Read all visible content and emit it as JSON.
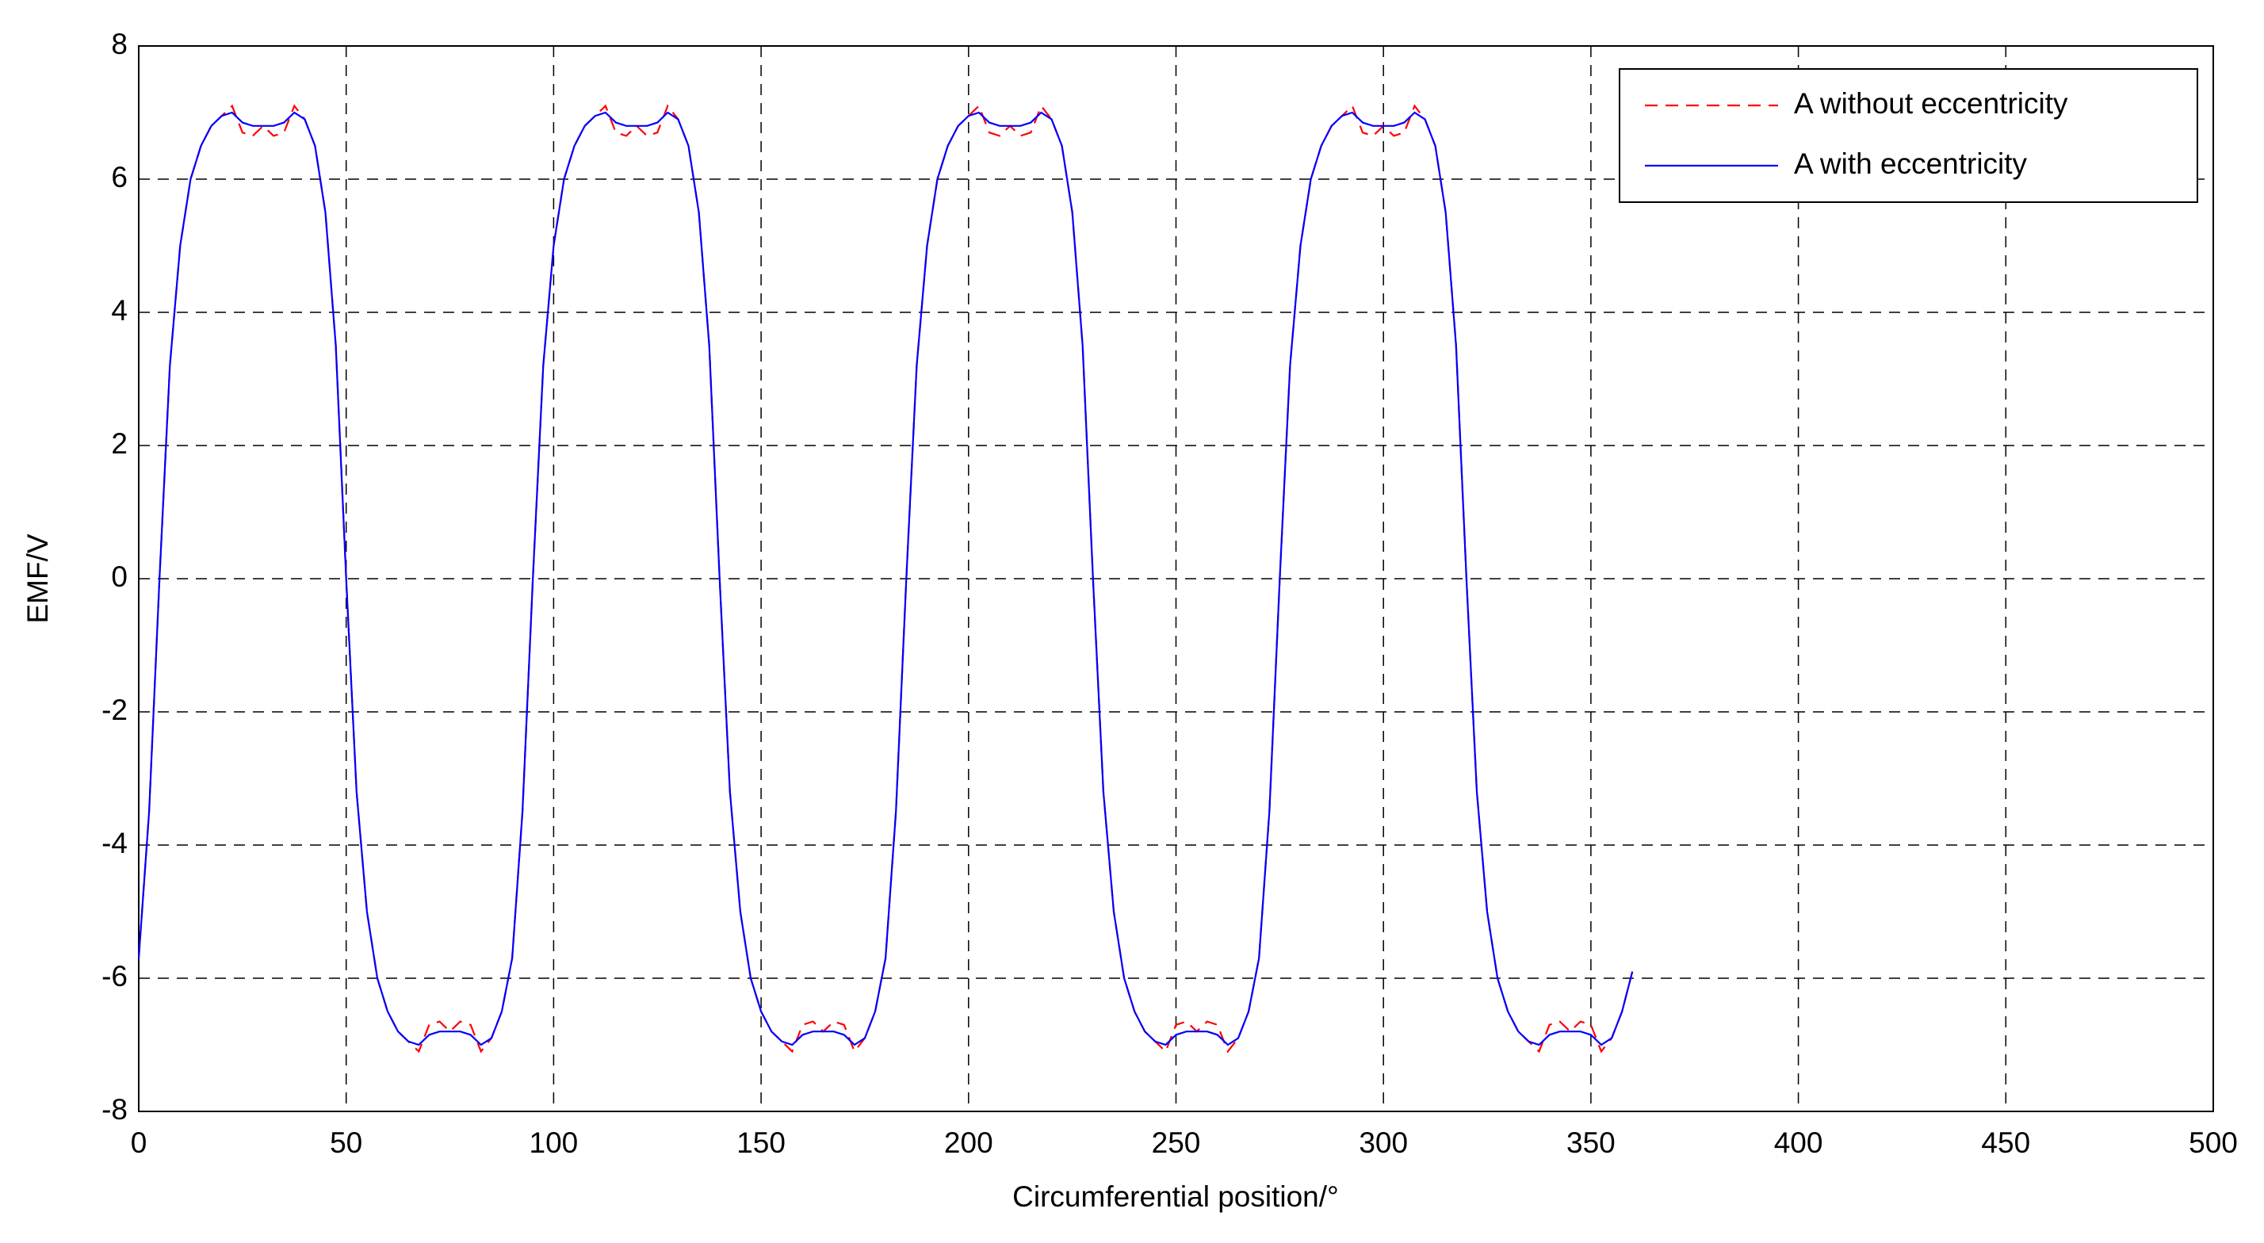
{
  "chart_data": {
    "type": "line",
    "xlabel": "Circumferential position/°",
    "ylabel": "EMF/V",
    "x": [
      0,
      2.5,
      5,
      7.5,
      10,
      12.5,
      15,
      17.5,
      20,
      22.5,
      25,
      27.5,
      30,
      32.5,
      35,
      37.5,
      40,
      42.5,
      45,
      47.5,
      50,
      52.5,
      55,
      57.5,
      60,
      62.5,
      65,
      67.5,
      70,
      72.5,
      75,
      77.5,
      80,
      82.5,
      85,
      87.5,
      90,
      92.5,
      95,
      97.5,
      100,
      102.5,
      105,
      107.5,
      110,
      112.5,
      115,
      117.5,
      120,
      122.5,
      125,
      127.5,
      130,
      132.5,
      135,
      137.5,
      140,
      142.5,
      145,
      147.5,
      150,
      152.5,
      155,
      157.5,
      160,
      162.5,
      165,
      167.5,
      170,
      172.5,
      175,
      177.5,
      180,
      182.5,
      185,
      187.5,
      190,
      192.5,
      195,
      197.5,
      200,
      202.5,
      205,
      207.5,
      210,
      212.5,
      215,
      217.5,
      220,
      222.5,
      225,
      227.5,
      230,
      232.5,
      235,
      237.5,
      240,
      242.5,
      245,
      247.5,
      250,
      252.5,
      255,
      257.5,
      260,
      262.5,
      265,
      267.5,
      270,
      272.5,
      275,
      277.5,
      280,
      282.5,
      285,
      287.5,
      290,
      292.5,
      295,
      297.5,
      300,
      302.5,
      305,
      307.5,
      310,
      312.5,
      315,
      317.5,
      320,
      322.5,
      325,
      327.5,
      330,
      332.5,
      335,
      337.5,
      340,
      342.5,
      345,
      347.5,
      350,
      352.5,
      355,
      357.5,
      360
    ],
    "series": [
      {
        "name": "A without eccentricity",
        "color": "#ff0000",
        "dashed": true,
        "values": [
          -5.7,
          -3.5,
          0,
          3.2,
          5,
          6,
          6.5,
          6.8,
          6.95,
          7.1,
          6.7,
          6.65,
          6.8,
          6.65,
          6.7,
          7.1,
          6.9,
          6.5,
          5.5,
          3.5,
          0,
          -3.2,
          -5,
          -6,
          -6.5,
          -6.8,
          -6.95,
          -7.1,
          -6.7,
          -6.65,
          -6.8,
          -6.65,
          -6.7,
          -7.1,
          -6.9,
          -6.5,
          -5.7,
          -3.5,
          0,
          3.2,
          5,
          6,
          6.5,
          6.8,
          6.95,
          7.1,
          6.7,
          6.65,
          6.8,
          6.65,
          6.7,
          7.1,
          6.9,
          6.5,
          5.5,
          3.5,
          0,
          -3.2,
          -5,
          -6,
          -6.5,
          -6.8,
          -6.95,
          -7.1,
          -6.7,
          -6.65,
          -6.8,
          -6.65,
          -6.7,
          -7.1,
          -6.9,
          -6.5,
          -5.7,
          -3.5,
          0,
          3.2,
          5,
          6,
          6.5,
          6.8,
          6.95,
          7.1,
          6.7,
          6.65,
          6.8,
          6.65,
          6.7,
          7.1,
          6.9,
          6.5,
          5.5,
          3.5,
          0,
          -3.2,
          -5,
          -6,
          -6.5,
          -6.8,
          -6.95,
          -7.1,
          -6.7,
          -6.65,
          -6.8,
          -6.65,
          -6.7,
          -7.1,
          -6.9,
          -6.5,
          -5.7,
          -3.5,
          0,
          3.2,
          5,
          6,
          6.5,
          6.8,
          6.95,
          7.1,
          6.7,
          6.65,
          6.8,
          6.65,
          6.7,
          7.1,
          6.9,
          6.5,
          5.5,
          3.5,
          0,
          -3.2,
          -5,
          -6,
          -6.5,
          -6.8,
          -6.95,
          -7.1,
          -6.7,
          -6.65,
          -6.8,
          -6.65,
          -6.7,
          -7.1,
          -6.9,
          -6.5,
          -5.9
        ]
      },
      {
        "name": "A with eccentricity",
        "color": "#0000ff",
        "dashed": false,
        "values": [
          -5.7,
          -3.5,
          0,
          3.2,
          5,
          6,
          6.5,
          6.8,
          6.95,
          7,
          6.85,
          6.8,
          6.8,
          6.8,
          6.85,
          7,
          6.9,
          6.5,
          5.5,
          3.5,
          0,
          -3.2,
          -5,
          -6,
          -6.5,
          -6.8,
          -6.95,
          -7,
          -6.85,
          -6.8,
          -6.8,
          -6.8,
          -6.85,
          -7,
          -6.9,
          -6.5,
          -5.7,
          -3.5,
          0,
          3.2,
          5,
          6,
          6.5,
          6.8,
          6.95,
          7,
          6.85,
          6.8,
          6.8,
          6.8,
          6.85,
          7,
          6.9,
          6.5,
          5.5,
          3.5,
          0,
          -3.2,
          -5,
          -6,
          -6.5,
          -6.8,
          -6.95,
          -7,
          -6.85,
          -6.8,
          -6.8,
          -6.8,
          -6.85,
          -7,
          -6.9,
          -6.5,
          -5.7,
          -3.5,
          0,
          3.2,
          5,
          6,
          6.5,
          6.8,
          6.95,
          7,
          6.85,
          6.8,
          6.8,
          6.8,
          6.85,
          7,
          6.9,
          6.5,
          5.5,
          3.5,
          0,
          -3.2,
          -5,
          -6,
          -6.5,
          -6.8,
          -6.95,
          -7,
          -6.85,
          -6.8,
          -6.8,
          -6.8,
          -6.85,
          -7,
          -6.9,
          -6.5,
          -5.7,
          -3.5,
          0,
          3.2,
          5,
          6,
          6.5,
          6.8,
          6.95,
          7,
          6.85,
          6.8,
          6.8,
          6.8,
          6.85,
          7,
          6.9,
          6.5,
          5.5,
          3.5,
          0,
          -3.2,
          -5,
          -6,
          -6.5,
          -6.8,
          -6.95,
          -7,
          -6.85,
          -6.8,
          -6.8,
          -6.8,
          -6.85,
          -7,
          -6.9,
          -6.5,
          -5.9
        ]
      }
    ],
    "xlim": [
      0,
      500
    ],
    "xticks": [
      0,
      50,
      100,
      150,
      200,
      250,
      300,
      350,
      400,
      450,
      500
    ],
    "ylim": [
      -8,
      8
    ],
    "yticks": [
      -8,
      -6,
      -4,
      -2,
      0,
      2,
      4,
      6,
      8
    ],
    "grid": true,
    "legend": "upper right"
  }
}
